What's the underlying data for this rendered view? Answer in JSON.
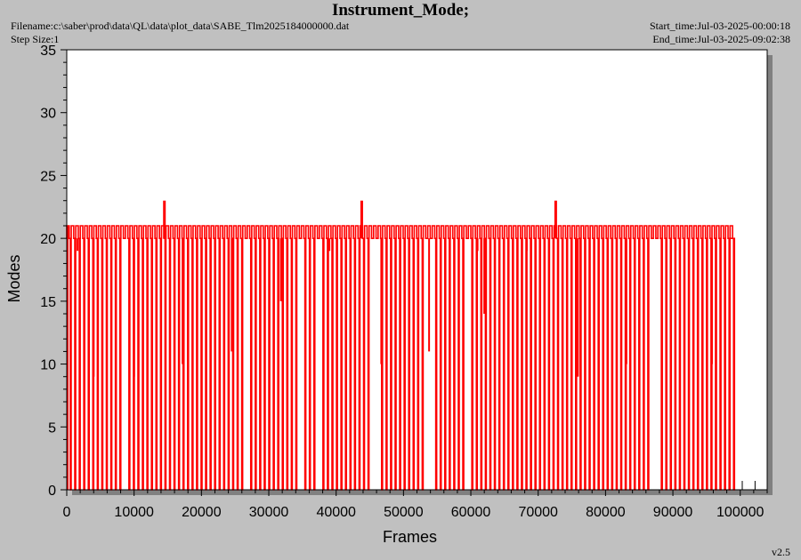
{
  "header": {
    "title": "Instrument_Mode;",
    "filename": "Filename:c:\\saber\\prod\\data\\QL\\data\\plot_data\\SABE_Tlm2025184000000.dat",
    "step_size": "Step Size:1",
    "start_time": "Start_time:Jul-03-2025-00:00:18",
    "end_time": "End_time:Jul-03-2025-09:02:38",
    "version": "v2.5"
  },
  "colors": {
    "background": "#c0c0c0",
    "plot_area": "#ffffff",
    "shadow": "#808080",
    "series": "#ff0000"
  },
  "chart_data": {
    "type": "line",
    "title": "Instrument_Mode;",
    "xlabel": "Frames",
    "ylabel": "Modes",
    "xlim": [
      0,
      104000
    ],
    "ylim": [
      0,
      35
    ],
    "x_ticks": [
      0,
      10000,
      20000,
      30000,
      40000,
      50000,
      60000,
      70000,
      80000,
      90000,
      100000
    ],
    "y_ticks": [
      0,
      5,
      10,
      15,
      20,
      25,
      30,
      35
    ],
    "grid": false,
    "legend": "none",
    "series": [
      {
        "color": "#ff0000",
        "baseline_mode": 20,
        "high_mode": 21,
        "low_mode": 0,
        "x_start": 0,
        "x_end": 98500,
        "pulse_period": 670,
        "spikes": [
          {
            "x": 14500,
            "y": 23
          },
          {
            "x": 43800,
            "y": 23
          },
          {
            "x": 72600,
            "y": 23
          }
        ],
        "partial_dips": [
          {
            "x": 1600,
            "y": 19
          },
          {
            "x": 4000,
            "y": 9
          },
          {
            "x": 10000,
            "y": 9
          },
          {
            "x": 17200,
            "y": 10
          },
          {
            "x": 24500,
            "y": 11
          },
          {
            "x": 31800,
            "y": 15
          },
          {
            "x": 39000,
            "y": 19
          },
          {
            "x": 46700,
            "y": 10
          },
          {
            "x": 53800,
            "y": 11
          },
          {
            "x": 61000,
            "y": 19
          },
          {
            "x": 62000,
            "y": 14
          },
          {
            "x": 68300,
            "y": 19
          },
          {
            "x": 75900,
            "y": 9
          },
          {
            "x": 83100,
            "y": 10
          },
          {
            "x": 90400,
            "y": 19
          },
          {
            "x": 95800,
            "y": 10
          }
        ],
        "gaps_at_zero": [
          [
            7600,
            8400
          ],
          [
            26000,
            26600
          ],
          [
            33600,
            34400
          ],
          [
            36600,
            37400
          ],
          [
            44600,
            45600
          ],
          [
            52800,
            53600
          ],
          [
            58800,
            59600
          ],
          [
            86400,
            87200
          ]
        ],
        "isolated_points": [
          {
            "x": 100300,
            "y": 0
          },
          {
            "x": 102200,
            "y": 0
          }
        ]
      }
    ]
  }
}
